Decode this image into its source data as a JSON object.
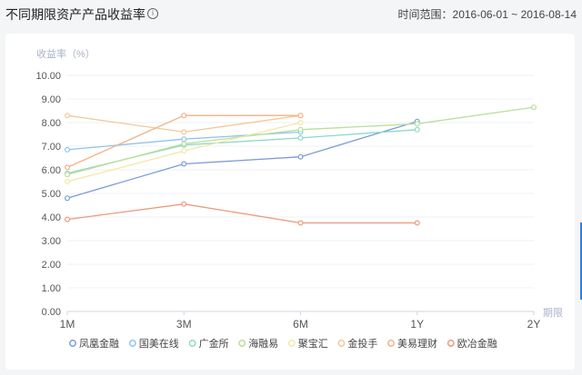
{
  "header": {
    "title": "不同期限资产产品收益率",
    "info_icon": "info-icon",
    "range_label": "时间范围：",
    "range_start": "2016-06-01",
    "range_sep": "~",
    "range_end": "2016-08-14"
  },
  "chart_data": {
    "type": "line",
    "ylabel": "收益率（%）",
    "xlabel": "期限",
    "categories": [
      "1M",
      "3M",
      "6M",
      "1Y",
      "2Y"
    ],
    "ylim": [
      0,
      10
    ],
    "yticks": [
      "0.00",
      "1.00",
      "2.00",
      "3.00",
      "4.00",
      "5.00",
      "6.00",
      "7.00",
      "8.00",
      "9.00",
      "10.00"
    ],
    "grid": true,
    "legend_position": "bottom",
    "series": [
      {
        "name": "凤凰金融",
        "color": "#7b9bd8",
        "values": [
          4.8,
          6.25,
          6.55,
          8.05,
          null
        ]
      },
      {
        "name": "国美在线",
        "color": "#8fc3f0",
        "values": [
          6.85,
          7.3,
          7.6,
          null,
          null
        ]
      },
      {
        "name": "广金所",
        "color": "#8fd8c6",
        "values": [
          5.85,
          7.05,
          7.35,
          7.7,
          null
        ]
      },
      {
        "name": "海融易",
        "color": "#b8e09a",
        "values": [
          5.8,
          7.1,
          7.7,
          7.95,
          8.65
        ]
      },
      {
        "name": "聚宝汇",
        "color": "#f3e8a6",
        "values": [
          5.5,
          6.8,
          8.0,
          null,
          null
        ]
      },
      {
        "name": "金投手",
        "color": "#f1c997",
        "values": [
          8.3,
          7.6,
          8.3,
          null,
          null
        ]
      },
      {
        "name": "美易理财",
        "color": "#f4b183",
        "values": [
          6.1,
          8.3,
          8.3,
          null,
          null
        ]
      },
      {
        "name": "欧冶金融",
        "color": "#ea9a7c",
        "values": [
          3.9,
          4.55,
          3.75,
          3.75,
          null
        ]
      }
    ]
  }
}
